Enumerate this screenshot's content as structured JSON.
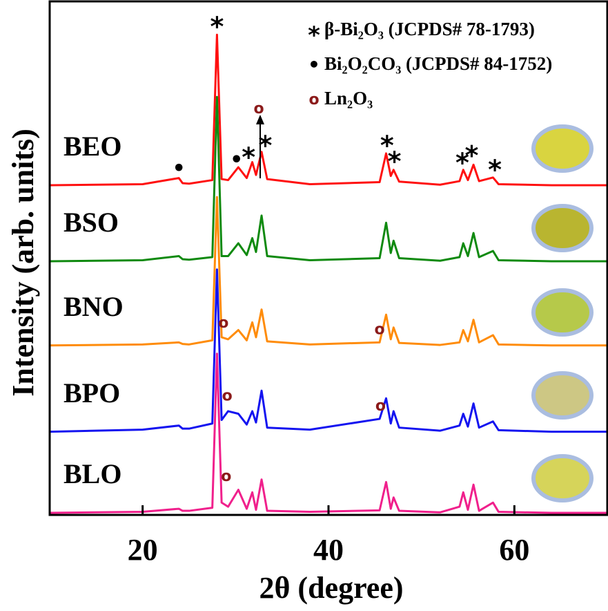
{
  "chart_data": {
    "type": "line",
    "xlabel": "2θ (degree)",
    "ylabel": "Intensity (arb. units)",
    "xlim": [
      10,
      70
    ],
    "xticks": [
      20,
      40,
      60
    ],
    "ylim": [
      0,
      100
    ],
    "x": [
      10,
      20,
      23.9,
      24.3,
      25,
      27.5,
      28.0,
      28.5,
      29.2,
      30.3,
      31.2,
      31.8,
      32.2,
      32.8,
      33.4,
      38,
      45.5,
      46.2,
      46.7,
      47.0,
      47.6,
      52,
      54.1,
      54.5,
      55.0,
      55.6,
      56.2,
      57.7,
      58.3,
      64,
      70
    ],
    "series": [
      {
        "name": "BEO",
        "color": "#ff1010",
        "values": [
          64.2,
          64.4,
          65.6,
          64.6,
          64.5,
          65.2,
          93.5,
          65.4,
          65.2,
          67.7,
          65.6,
          68.7,
          66.2,
          70.7,
          65.4,
          64.4,
          64.8,
          70.4,
          66.0,
          67.2,
          64.9,
          64.3,
          65.0,
          67.2,
          65.2,
          68.2,
          65.0,
          65.7,
          64.4,
          64.2,
          64.2
        ]
      },
      {
        "name": "BSO",
        "color": "#108a10",
        "values": [
          49.4,
          49.6,
          50.4,
          49.8,
          49.7,
          50.2,
          81.4,
          50.4,
          50.4,
          52.9,
          50.6,
          53.9,
          51.2,
          58.3,
          50.4,
          49.6,
          50.0,
          56.9,
          51.0,
          53.4,
          50.0,
          49.5,
          50.2,
          52.9,
          50.4,
          54.9,
          50.2,
          51.4,
          49.6,
          49.4,
          49.4
        ]
      },
      {
        "name": "BNO",
        "color": "#ff8c0a",
        "values": [
          33.0,
          33.2,
          33.6,
          33.3,
          33.2,
          34.0,
          61.9,
          34.6,
          34.2,
          36.0,
          34.0,
          37.5,
          34.6,
          40.0,
          33.8,
          33.2,
          33.6,
          39.0,
          34.2,
          36.5,
          33.5,
          33.1,
          33.6,
          36.0,
          33.8,
          38.0,
          33.6,
          35.0,
          33.2,
          33.0,
          33.0
        ]
      },
      {
        "name": "BPO",
        "color": "#1414f0",
        "values": [
          16.2,
          16.6,
          17.4,
          16.8,
          16.8,
          17.8,
          47.8,
          18.5,
          20.2,
          19.7,
          17.6,
          20.2,
          18.0,
          24.2,
          17.0,
          16.6,
          18.7,
          22.7,
          17.8,
          20.2,
          17.0,
          16.4,
          17.4,
          19.7,
          17.2,
          21.7,
          17.0,
          18.2,
          16.5,
          16.2,
          16.2
        ]
      },
      {
        "name": "BLO",
        "color": "#f0208c",
        "values": [
          0.4,
          0.6,
          1.2,
          0.8,
          0.8,
          1.4,
          31.4,
          2.4,
          1.6,
          4.9,
          1.2,
          4.4,
          1.0,
          6.9,
          0.8,
          0.6,
          0.9,
          6.4,
          1.2,
          3.4,
          0.8,
          0.5,
          1.6,
          4.4,
          1.0,
          5.9,
          0.8,
          2.4,
          0.6,
          0.4,
          0.4
        ]
      }
    ],
    "legend_items": [
      {
        "symbol": "*",
        "label": "β-Bi₂O₃ (JCPDS# 78-1793)"
      },
      {
        "symbol": "•",
        "label": "Bi₂O₂CO₃ (JCPDS# 84-1752)"
      },
      {
        "symbol": "o",
        "label": "Ln₂O₃"
      }
    ],
    "annotations": [
      {
        "text": "*",
        "x": 28.0,
        "y": 95.8
      },
      {
        "text": "*",
        "x": 31.4,
        "y": 70.4
      },
      {
        "text": "*",
        "x": 33.2,
        "y": 72.7
      },
      {
        "text": "*",
        "x": 46.3,
        "y": 72.7
      },
      {
        "text": "*",
        "x": 47.1,
        "y": 69.6
      },
      {
        "text": "*",
        "x": 54.4,
        "y": 69.3
      },
      {
        "text": "*",
        "x": 55.4,
        "y": 70.7
      },
      {
        "text": "*",
        "x": 57.9,
        "y": 68.0
      },
      {
        "text": "•",
        "x": 23.9,
        "y": 67.3
      },
      {
        "text": "•",
        "x": 30.1,
        "y": 69.0
      },
      {
        "text": "o",
        "x": 32.5,
        "y": 79.0
      },
      {
        "text": "o",
        "x": 28.7,
        "y": 37.3
      },
      {
        "text": "o",
        "x": 45.5,
        "y": 36.0
      },
      {
        "text": "o",
        "x": 29.1,
        "y": 23.1
      },
      {
        "text": "o",
        "x": 45.6,
        "y": 21.1
      },
      {
        "text": "o",
        "x": 29.0,
        "y": 7.4
      }
    ]
  }
}
